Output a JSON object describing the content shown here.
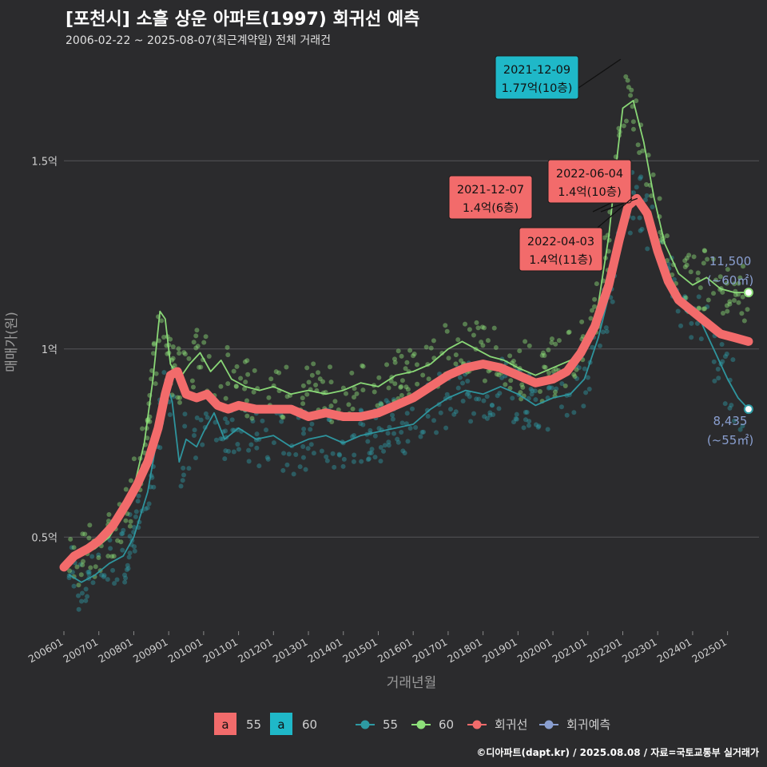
{
  "title": "[포천시] 소흘 상운 아파트(1997) 회귀선 예측",
  "subtitle": "2006-02-22 ~ 2025-08-07(최근계약일) 전체 거래건",
  "credit": "©디아파트(dapt.kr) / 2025.08.08 / 자료=국토교통부 실거래가",
  "colors": {
    "bg": "#2b2b2d",
    "grid": "#555558",
    "s55": "#2e9aa3",
    "s60": "#8ee07a",
    "regression": "#f26b6b",
    "forecast": "#8a9fd0",
    "label60_bg": "#1fb8c8",
    "labelred_bg": "#f26b6b"
  },
  "chart_data": {
    "type": "scatter",
    "xlabel": "거래년월",
    "ylabel": "매매가(원)",
    "ylim": [
      0.25,
      1.8
    ],
    "yticks": [
      {
        "v": 0.5,
        "label": "0.5억"
      },
      {
        "v": 1.0,
        "label": "1억"
      },
      {
        "v": 1.5,
        "label": "1.5억"
      }
    ],
    "xticks": [
      "200601",
      "200701",
      "200801",
      "200901",
      "201001",
      "201101",
      "201201",
      "201301",
      "201401",
      "201501",
      "201601",
      "201701",
      "201801",
      "201901",
      "202001",
      "202101",
      "202201",
      "202301",
      "202401",
      "202501"
    ],
    "xrange": [
      2006.0,
      2025.9
    ],
    "series": [
      {
        "name": "55",
        "key": "s55",
        "line": [
          [
            2006.15,
            0.4
          ],
          [
            2006.5,
            0.38
          ],
          [
            2006.9,
            0.4
          ],
          [
            2007.3,
            0.43
          ],
          [
            2007.7,
            0.45
          ],
          [
            2008.0,
            0.5
          ],
          [
            2008.4,
            0.62
          ],
          [
            2008.7,
            0.78
          ],
          [
            2008.9,
            0.92
          ],
          [
            2009.1,
            0.86
          ],
          [
            2009.3,
            0.7
          ],
          [
            2009.5,
            0.76
          ],
          [
            2009.8,
            0.74
          ],
          [
            2010.0,
            0.78
          ],
          [
            2010.3,
            0.83
          ],
          [
            2010.6,
            0.76
          ],
          [
            2011.0,
            0.79
          ],
          [
            2011.5,
            0.76
          ],
          [
            2012.0,
            0.77
          ],
          [
            2012.5,
            0.74
          ],
          [
            2013.0,
            0.76
          ],
          [
            2013.5,
            0.77
          ],
          [
            2014.0,
            0.75
          ],
          [
            2014.5,
            0.77
          ],
          [
            2015.0,
            0.78
          ],
          [
            2015.5,
            0.79
          ],
          [
            2016.0,
            0.8
          ],
          [
            2016.5,
            0.84
          ],
          [
            2017.0,
            0.87
          ],
          [
            2017.5,
            0.89
          ],
          [
            2018.0,
            0.88
          ],
          [
            2018.5,
            0.9
          ],
          [
            2019.0,
            0.88
          ],
          [
            2019.5,
            0.85
          ],
          [
            2020.0,
            0.87
          ],
          [
            2020.5,
            0.88
          ],
          [
            2020.9,
            0.92
          ],
          [
            2021.3,
            1.03
          ],
          [
            2021.7,
            1.18
          ],
          [
            2022.0,
            1.32
          ],
          [
            2022.3,
            1.4
          ],
          [
            2022.6,
            1.37
          ],
          [
            2023.0,
            1.26
          ],
          [
            2023.4,
            1.17
          ],
          [
            2023.8,
            1.1
          ],
          [
            2024.2,
            1.08
          ],
          [
            2024.6,
            1.0
          ],
          [
            2025.0,
            0.92
          ],
          [
            2025.3,
            0.87
          ],
          [
            2025.6,
            0.84
          ]
        ],
        "end_value": "8,435",
        "end_area": "(~55㎡)"
      },
      {
        "name": "60",
        "key": "s60",
        "line": [
          [
            2006.15,
            0.44
          ],
          [
            2006.5,
            0.45
          ],
          [
            2006.9,
            0.47
          ],
          [
            2007.3,
            0.5
          ],
          [
            2007.7,
            0.56
          ],
          [
            2008.0,
            0.63
          ],
          [
            2008.3,
            0.75
          ],
          [
            2008.55,
            0.92
          ],
          [
            2008.75,
            1.1
          ],
          [
            2008.9,
            1.08
          ],
          [
            2009.05,
            0.96
          ],
          [
            2009.3,
            0.92
          ],
          [
            2009.6,
            0.96
          ],
          [
            2009.9,
            0.99
          ],
          [
            2010.2,
            0.94
          ],
          [
            2010.5,
            0.97
          ],
          [
            2010.8,
            0.92
          ],
          [
            2011.2,
            0.9
          ],
          [
            2011.6,
            0.89
          ],
          [
            2012.0,
            0.9
          ],
          [
            2012.5,
            0.88
          ],
          [
            2013.0,
            0.89
          ],
          [
            2013.5,
            0.88
          ],
          [
            2014.0,
            0.89
          ],
          [
            2014.5,
            0.91
          ],
          [
            2015.0,
            0.9
          ],
          [
            2015.5,
            0.93
          ],
          [
            2016.0,
            0.94
          ],
          [
            2016.5,
            0.96
          ],
          [
            2017.0,
            1.0
          ],
          [
            2017.4,
            1.02
          ],
          [
            2017.8,
            1.0
          ],
          [
            2018.2,
            0.98
          ],
          [
            2018.6,
            0.97
          ],
          [
            2019.0,
            0.95
          ],
          [
            2019.5,
            0.93
          ],
          [
            2020.0,
            0.95
          ],
          [
            2020.5,
            0.97
          ],
          [
            2020.9,
            1.0
          ],
          [
            2021.3,
            1.12
          ],
          [
            2021.6,
            1.3
          ],
          [
            2021.85,
            1.52
          ],
          [
            2022.0,
            1.64
          ],
          [
            2022.3,
            1.66
          ],
          [
            2022.6,
            1.55
          ],
          [
            2022.9,
            1.4
          ],
          [
            2023.2,
            1.28
          ],
          [
            2023.6,
            1.2
          ],
          [
            2024.0,
            1.17
          ],
          [
            2024.4,
            1.19
          ],
          [
            2024.8,
            1.16
          ],
          [
            2025.2,
            1.15
          ],
          [
            2025.6,
            1.15
          ]
        ],
        "end_value": "11,500",
        "end_area": "(~60㎡)"
      },
      {
        "name": "회귀선",
        "key": "regression",
        "line": [
          [
            2006.0,
            0.42
          ],
          [
            2006.3,
            0.45
          ],
          [
            2006.7,
            0.47
          ],
          [
            2007.0,
            0.49
          ],
          [
            2007.4,
            0.53
          ],
          [
            2007.8,
            0.59
          ],
          [
            2008.1,
            0.64
          ],
          [
            2008.4,
            0.7
          ],
          [
            2008.7,
            0.79
          ],
          [
            2008.9,
            0.88
          ],
          [
            2009.05,
            0.93
          ],
          [
            2009.25,
            0.94
          ],
          [
            2009.5,
            0.88
          ],
          [
            2009.8,
            0.87
          ],
          [
            2010.1,
            0.88
          ],
          [
            2010.4,
            0.85
          ],
          [
            2010.7,
            0.84
          ],
          [
            2011.0,
            0.85
          ],
          [
            2011.5,
            0.84
          ],
          [
            2012.0,
            0.84
          ],
          [
            2012.5,
            0.84
          ],
          [
            2013.0,
            0.82
          ],
          [
            2013.5,
            0.83
          ],
          [
            2014.0,
            0.82
          ],
          [
            2014.5,
            0.82
          ],
          [
            2015.0,
            0.83
          ],
          [
            2015.5,
            0.85
          ],
          [
            2016.0,
            0.87
          ],
          [
            2016.5,
            0.9
          ],
          [
            2017.0,
            0.93
          ],
          [
            2017.5,
            0.95
          ],
          [
            2018.0,
            0.96
          ],
          [
            2018.5,
            0.95
          ],
          [
            2019.0,
            0.93
          ],
          [
            2019.5,
            0.91
          ],
          [
            2020.0,
            0.92
          ],
          [
            2020.4,
            0.94
          ],
          [
            2020.8,
            0.99
          ],
          [
            2021.2,
            1.06
          ],
          [
            2021.6,
            1.17
          ],
          [
            2021.9,
            1.29
          ],
          [
            2022.15,
            1.38
          ],
          [
            2022.4,
            1.4
          ],
          [
            2022.7,
            1.36
          ],
          [
            2023.0,
            1.26
          ],
          [
            2023.3,
            1.18
          ],
          [
            2023.6,
            1.13
          ],
          [
            2024.0,
            1.1
          ],
          [
            2024.4,
            1.07
          ],
          [
            2024.8,
            1.04
          ],
          [
            2025.2,
            1.03
          ],
          [
            2025.6,
            1.02
          ]
        ]
      },
      {
        "name": "회귀예측",
        "key": "forecast",
        "line": []
      }
    ],
    "annotations": [
      {
        "date": "2021-12-09",
        "value": "1.77억(10층)",
        "x": 2021.94,
        "y": 1.77,
        "style": "label60_bg"
      },
      {
        "date": "2021-12-07",
        "value": "1.4억(6층)",
        "x": 2021.93,
        "y": 1.4,
        "style": "labelred_bg"
      },
      {
        "date": "2022-06-04",
        "value": "1.4억(10층)",
        "x": 2022.42,
        "y": 1.4,
        "style": "labelred_bg"
      },
      {
        "date": "2022-04-03",
        "value": "1.4억(11층)",
        "x": 2022.26,
        "y": 1.4,
        "style": "labelred_bg"
      }
    ],
    "legend": {
      "placement": "bottom",
      "text_keys": [
        {
          "glyph": "a",
          "name": "55",
          "key": "regression"
        },
        {
          "glyph": "a",
          "name": "60",
          "key": "label60_bg"
        }
      ],
      "items": [
        {
          "name": "55",
          "key": "s55"
        },
        {
          "name": "60",
          "key": "s60"
        },
        {
          "name": "회귀선",
          "key": "regression"
        },
        {
          "name": "회귀예측",
          "key": "forecast"
        }
      ]
    }
  }
}
